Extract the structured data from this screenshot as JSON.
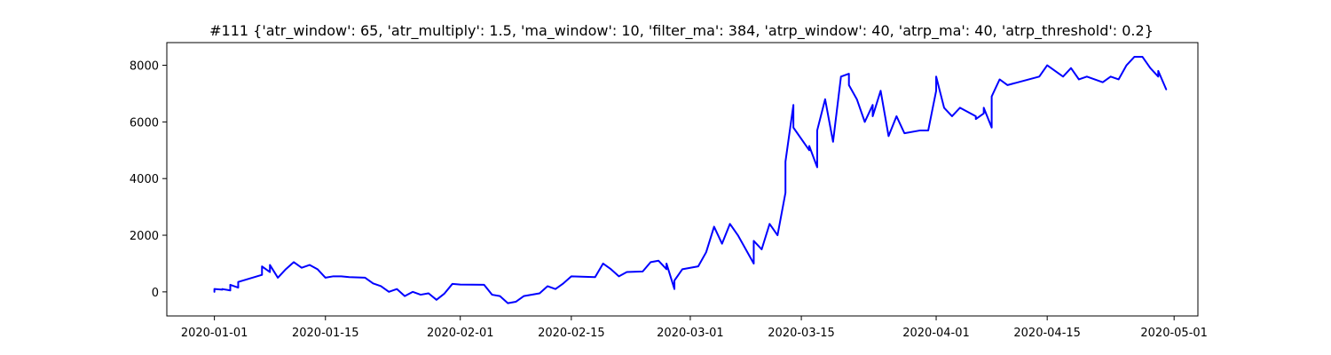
{
  "chart_data": {
    "type": "line",
    "title": "#111 {'atr_window': 65, 'atr_multiply': 1.5, 'ma_window': 10, 'filter_ma': 384, 'atrp_window': 40, 'atrp_ma': 40, 'atrp_threshold': 0.2}",
    "xlabel": "",
    "ylabel": "",
    "grid": false,
    "legend": "none",
    "line_color": "#0000ff",
    "xlim": [
      "2019-12-26",
      "2020-05-04"
    ],
    "ylim": [
      -850,
      8800
    ],
    "x_ticks": [
      "2020-01-01",
      "2020-01-15",
      "2020-02-01",
      "2020-02-15",
      "2020-03-01",
      "2020-03-15",
      "2020-04-01",
      "2020-04-15",
      "2020-05-01"
    ],
    "y_ticks": [
      0,
      2000,
      4000,
      6000,
      8000
    ],
    "series": [
      {
        "x": [
          "2020-01-01",
          "2020-01-01",
          "2020-01-02",
          "2020-01-02",
          "2020-01-03",
          "2020-01-03",
          "2020-01-04",
          "2020-01-04",
          "2020-01-07",
          "2020-01-07",
          "2020-01-08",
          "2020-01-08",
          "2020-01-09",
          "2020-01-10",
          "2020-01-11",
          "2020-01-12",
          "2020-01-13",
          "2020-01-14",
          "2020-01-15",
          "2020-01-16",
          "2020-01-17",
          "2020-01-18",
          "2020-01-20",
          "2020-01-21",
          "2020-01-22",
          "2020-01-23",
          "2020-01-24",
          "2020-01-25",
          "2020-01-26",
          "2020-01-27",
          "2020-01-28",
          "2020-01-29",
          "2020-01-30",
          "2020-01-31",
          "2020-02-01",
          "2020-02-04",
          "2020-02-05",
          "2020-02-06",
          "2020-02-07",
          "2020-02-08",
          "2020-02-09",
          "2020-02-11",
          "2020-02-12",
          "2020-02-13",
          "2020-02-14",
          "2020-02-15",
          "2020-02-18",
          "2020-02-19",
          "2020-02-20",
          "2020-02-21",
          "2020-02-22",
          "2020-02-24",
          "2020-02-25",
          "2020-02-26",
          "2020-02-27",
          "2020-02-27",
          "2020-02-28",
          "2020-02-28",
          "2020-02-29",
          "2020-03-02",
          "2020-03-03",
          "2020-03-04",
          "2020-03-05",
          "2020-03-06",
          "2020-03-07",
          "2020-03-09",
          "2020-03-09",
          "2020-03-10",
          "2020-03-11",
          "2020-03-12",
          "2020-03-13",
          "2020-03-13",
          "2020-03-14",
          "2020-03-14",
          "2020-03-16",
          "2020-03-16",
          "2020-03-17",
          "2020-03-17",
          "2020-03-18",
          "2020-03-19",
          "2020-03-20",
          "2020-03-21",
          "2020-03-21",
          "2020-03-22",
          "2020-03-23",
          "2020-03-24",
          "2020-03-24",
          "2020-03-25",
          "2020-03-26",
          "2020-03-27",
          "2020-03-28",
          "2020-03-30",
          "2020-03-31",
          "2020-04-01",
          "2020-04-01",
          "2020-04-02",
          "2020-04-03",
          "2020-04-04",
          "2020-04-06",
          "2020-04-06",
          "2020-04-07",
          "2020-04-07",
          "2020-04-08",
          "2020-04-08",
          "2020-04-09",
          "2020-04-10",
          "2020-04-14",
          "2020-04-15",
          "2020-04-16",
          "2020-04-17",
          "2020-04-18",
          "2020-04-19",
          "2020-04-20",
          "2020-04-22",
          "2020-04-23",
          "2020-04-24",
          "2020-04-25",
          "2020-04-26",
          "2020-04-27",
          "2020-04-28",
          "2020-04-29",
          "2020-04-29",
          "2020-04-30"
        ],
        "values": [
          0,
          100,
          80,
          100,
          50,
          250,
          150,
          350,
          600,
          900,
          700,
          950,
          500,
          800,
          1050,
          850,
          950,
          800,
          500,
          550,
          550,
          520,
          500,
          300,
          200,
          0,
          100,
          -150,
          0,
          -100,
          -50,
          -280,
          -60,
          280,
          260,
          250,
          -100,
          -150,
          -400,
          -350,
          -150,
          -50,
          200,
          100,
          300,
          550,
          520,
          1000,
          800,
          550,
          700,
          720,
          1050,
          1100,
          800,
          1000,
          100,
          400,
          800,
          900,
          1400,
          2300,
          1700,
          2400,
          2000,
          1000,
          1800,
          1500,
          2400,
          2000,
          3500,
          4600,
          6600,
          5800,
          5000,
          5150,
          4400,
          5700,
          6800,
          5300,
          7600,
          7700,
          7300,
          6800,
          6000,
          6600,
          6200,
          7100,
          5500,
          6200,
          5600,
          5700,
          5700,
          7100,
          7600,
          6500,
          6200,
          6500,
          6200,
          6100,
          6300,
          6500,
          5800,
          6900,
          7500,
          7300,
          7600,
          8000,
          7800,
          7600,
          7900,
          7500,
          7600,
          7400,
          7600,
          7500,
          8000,
          8300,
          8300,
          7900,
          7600,
          7800,
          7150
        ]
      }
    ]
  }
}
